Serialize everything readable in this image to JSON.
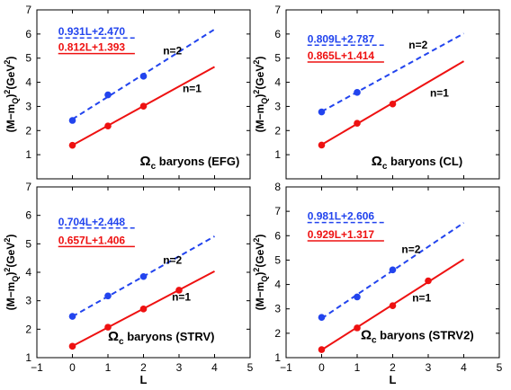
{
  "figure": {
    "ylabel_main": "(M−m",
    "ylabel_sub": "Q",
    "ylabel_tail": ")",
    "ylabel_sup": "2",
    "ylabel_unit": "(GeV",
    "ylabel_unit_close": ")",
    "xlabel": "L"
  },
  "colors": {
    "n1": "#ee1111",
    "n2": "#2244ee",
    "axis": "#000000"
  },
  "chart_data": [
    {
      "type": "line",
      "panel": "top-left",
      "label_omega": "Ω",
      "label_sub": "c",
      "label_text": " baryons (EFG)",
      "xlim": [
        -1,
        5
      ],
      "ylim": [
        0,
        7
      ],
      "xticks": [],
      "yticks": [
        0,
        1,
        2,
        3,
        4,
        5,
        6,
        7
      ],
      "xticklabels": [
        "",
        "",
        "",
        "",
        "",
        "",
        ""
      ],
      "yticklabels": [
        "",
        "1",
        "2",
        "3",
        "4",
        "5",
        "6",
        "7"
      ],
      "series": [
        {
          "name": "n=2",
          "color": "#2244ee",
          "dashed": true,
          "x": [
            0,
            1,
            2
          ],
          "y": [
            2.42,
            3.48,
            4.25
          ],
          "fit": {
            "slope": 0.931,
            "intercept": 2.47,
            "x0": 0,
            "x1": 4,
            "label": "0.931L+2.470"
          }
        },
        {
          "name": "n=1",
          "color": "#ee1111",
          "dashed": false,
          "x": [
            0,
            1,
            2
          ],
          "y": [
            1.39,
            2.19,
            3.01
          ],
          "fit": {
            "slope": 0.812,
            "intercept": 1.393,
            "x0": 0,
            "x1": 4,
            "label": "0.812L+1.393"
          }
        }
      ]
    },
    {
      "type": "line",
      "panel": "top-right",
      "label_omega": "Ω",
      "label_sub": "c",
      "label_text": " baryons (CL)",
      "xlim": [
        -1,
        5
      ],
      "ylim": [
        0,
        7
      ],
      "yticks": [
        0,
        1,
        2,
        3,
        4,
        5,
        6,
        7
      ],
      "xticklabels": [
        "",
        "",
        "",
        "",
        "",
        "",
        ""
      ],
      "yticklabels": [
        "",
        "1",
        "2",
        "3",
        "4",
        "5",
        "6",
        "7"
      ],
      "series": [
        {
          "name": "n=2",
          "color": "#2244ee",
          "dashed": true,
          "x": [
            0,
            1
          ],
          "y": [
            2.77,
            3.58
          ],
          "fit": {
            "slope": 0.809,
            "intercept": 2.787,
            "x0": 0,
            "x1": 4,
            "label": "0.809L+2.787"
          }
        },
        {
          "name": "n=1",
          "color": "#ee1111",
          "dashed": false,
          "x": [
            0,
            1,
            2
          ],
          "y": [
            1.4,
            2.3,
            3.1
          ],
          "fit": {
            "slope": 0.865,
            "intercept": 1.414,
            "x0": 0,
            "x1": 4,
            "label": "0.865L+1.414"
          }
        }
      ]
    },
    {
      "type": "line",
      "panel": "bottom-left",
      "label_omega": "Ω",
      "label_sub": "c",
      "label_text": " baryons (STRV)",
      "xlim": [
        -1,
        5
      ],
      "ylim": [
        1,
        7
      ],
      "yticks": [
        1,
        2,
        3,
        4,
        5,
        6,
        7
      ],
      "xticklabels": [
        "−1",
        "0",
        "1",
        "2",
        "3",
        "4",
        "5"
      ],
      "yticklabels": [
        "1",
        "2",
        "3",
        "4",
        "5",
        "6",
        "7"
      ],
      "series": [
        {
          "name": "n=2",
          "color": "#2244ee",
          "dashed": true,
          "x": [
            0,
            1,
            2
          ],
          "y": [
            2.45,
            3.17,
            3.85
          ],
          "fit": {
            "slope": 0.704,
            "intercept": 2.448,
            "x0": 0,
            "x1": 4,
            "label": "0.704L+2.448"
          }
        },
        {
          "name": "n=1",
          "color": "#ee1111",
          "dashed": false,
          "x": [
            0,
            1,
            2,
            3
          ],
          "y": [
            1.4,
            2.07,
            2.71,
            3.37
          ],
          "fit": {
            "slope": 0.657,
            "intercept": 1.406,
            "x0": 0,
            "x1": 4,
            "label": "0.657L+1.406"
          }
        }
      ]
    },
    {
      "type": "line",
      "panel": "bottom-right",
      "label_omega": "Ω",
      "label_sub": "c",
      "label_text": " baryons (STRV2)",
      "xlim": [
        -1,
        5
      ],
      "ylim": [
        1,
        8
      ],
      "yticks": [
        1,
        2,
        3,
        4,
        5,
        6,
        7,
        8
      ],
      "xticklabels": [
        "−1",
        "0",
        "1",
        "2",
        "3",
        "4",
        "5"
      ],
      "yticklabels": [
        "1",
        "2",
        "3",
        "4",
        "5",
        "6",
        "7",
        "8"
      ],
      "series": [
        {
          "name": "n=2",
          "color": "#2244ee",
          "dashed": true,
          "x": [
            0,
            1,
            2
          ],
          "y": [
            2.65,
            3.49,
            4.6
          ],
          "fit": {
            "slope": 0.981,
            "intercept": 2.606,
            "x0": 0,
            "x1": 4,
            "label": "0.981L+2.606"
          }
        },
        {
          "name": "n=1",
          "color": "#ee1111",
          "dashed": false,
          "x": [
            0,
            1,
            2,
            3
          ],
          "y": [
            1.33,
            2.22,
            3.13,
            4.15
          ],
          "fit": {
            "slope": 0.929,
            "intercept": 1.317,
            "x0": 0,
            "x1": 4,
            "label": "0.929L+1.317"
          }
        }
      ]
    }
  ]
}
